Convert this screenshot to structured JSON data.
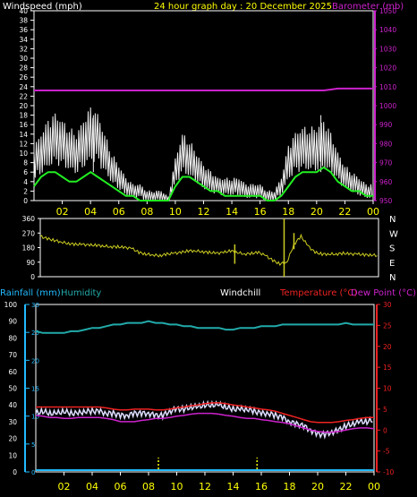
{
  "header": {
    "windspeed_label": "Windspeed (mph)",
    "title": "24 hour graph day : 20 December 2025",
    "barometer_label": "Barometer (mb)"
  },
  "lower_header": {
    "rainfall_label": "Rainfall (mm)",
    "humidity_label": "Humidity",
    "windchill_label": "Windchill",
    "temperature_label": "Temperature (°C)",
    "dewpoint_label": "Dew Point (°C)"
  },
  "colors": {
    "background": "#000000",
    "axis_white": "#ffffff",
    "time_labels": "#ffff00",
    "wind_gust": "#f0f0f0",
    "wind_avg": "#22ee22",
    "barometer": "#cc22cc",
    "direction": "#cccc22",
    "humidity": "#22aaaa",
    "rainfall": "#22bbff",
    "temperature": "#ee2222",
    "dewpoint": "#cc22cc",
    "windchill": "#ddddff"
  },
  "chart_data": [
    {
      "type": "line",
      "name": "wind-barometer",
      "x_ticks": [
        "02",
        "04",
        "06",
        "08",
        "10",
        "12",
        "14",
        "16",
        "18",
        "20",
        "22",
        "00"
      ],
      "y_left": {
        "label": "Windspeed (mph)",
        "ticks": [
          "0",
          "2",
          "4",
          "6",
          "8",
          "10",
          "12",
          "14",
          "16",
          "18",
          "20",
          "22",
          "24",
          "26",
          "28",
          "30",
          "32",
          "34",
          "36",
          "38",
          "40"
        ],
        "range": [
          0,
          40
        ]
      },
      "y_right": {
        "label": "Barometer (mb)",
        "ticks": [
          "950",
          "960",
          "970",
          "980",
          "990",
          "1000",
          "1010",
          "1020",
          "1030",
          "1040",
          "1050"
        ],
        "range": [
          950,
          1050
        ]
      },
      "hours": [
        0,
        0.5,
        1,
        1.5,
        2,
        2.5,
        3,
        3.5,
        4,
        4.5,
        5,
        5.5,
        6,
        6.5,
        7,
        7.5,
        8,
        8.5,
        9,
        9.5,
        10,
        10.5,
        11,
        11.5,
        12,
        12.5,
        13,
        13.5,
        14,
        14.5,
        15,
        15.5,
        16,
        16.5,
        17,
        17.5,
        18,
        18.5,
        19,
        19.5,
        20,
        20.5,
        21,
        21.5,
        22,
        22.5,
        23,
        23.5,
        24
      ],
      "series": [
        {
          "name": "Windspeed gust",
          "values": [
            8,
            10,
            12,
            13,
            12,
            11,
            10,
            12,
            14,
            13,
            10,
            7,
            5,
            3,
            2,
            2,
            1,
            1,
            1,
            0,
            6,
            10,
            9,
            7,
            5,
            4,
            3,
            3,
            3,
            3,
            2,
            2,
            2,
            1,
            1,
            3,
            8,
            10,
            11,
            11,
            11,
            12,
            10,
            7,
            5,
            4,
            3,
            2,
            2
          ]
        },
        {
          "name": "Windspeed average",
          "values": [
            3,
            5,
            6,
            6,
            5,
            4,
            4,
            5,
            6,
            5,
            4,
            3,
            2,
            1,
            1,
            0,
            0,
            0,
            0,
            0,
            3,
            5,
            5,
            4,
            3,
            2,
            2,
            1,
            1,
            1,
            1,
            1,
            1,
            0,
            0,
            1,
            3,
            5,
            6,
            6,
            6,
            7,
            6,
            4,
            3,
            2,
            2,
            1,
            1
          ]
        },
        {
          "name": "Barometer",
          "values": [
            1008,
            1008,
            1008,
            1008,
            1008,
            1008,
            1008,
            1008,
            1008,
            1008,
            1008,
            1008,
            1008,
            1008,
            1008,
            1008,
            1008,
            1008,
            1008,
            1008,
            1008,
            1008,
            1008,
            1008,
            1008,
            1008,
            1008,
            1008,
            1008,
            1008,
            1008,
            1008,
            1008,
            1008,
            1008,
            1008,
            1008,
            1008,
            1008,
            1008,
            1008,
            1008,
            1008.5,
            1009,
            1009,
            1009,
            1009,
            1009,
            1009
          ]
        }
      ],
      "gust_peaks": [
        {
          "hour": 4.2,
          "value": 18
        },
        {
          "hour": 20.3,
          "value": 18
        }
      ]
    },
    {
      "type": "line",
      "name": "wind-direction",
      "y_left_ticks": [
        "360",
        "270",
        "180",
        "90",
        "0"
      ],
      "y_left_range": [
        0,
        360
      ],
      "compass_labels": [
        "N",
        "W",
        "S",
        "E",
        "N"
      ],
      "hours": [
        0,
        0.5,
        1,
        1.5,
        2,
        2.5,
        3,
        3.5,
        4,
        4.5,
        5,
        5.5,
        6,
        6.5,
        7,
        7.5,
        8,
        8.5,
        9,
        9.5,
        10,
        10.5,
        11,
        11.5,
        12,
        12.5,
        13,
        13.5,
        14,
        14.5,
        15,
        15.5,
        16,
        16.5,
        17,
        17.5,
        18,
        18.5,
        19,
        19.5,
        20,
        20.5,
        21,
        21.5,
        22,
        22.5,
        23,
        23.5,
        24
      ],
      "series": [
        {
          "name": "Wind direction",
          "values": [
            250,
            235,
            225,
            215,
            205,
            200,
            200,
            195,
            195,
            190,
            185,
            185,
            180,
            175,
            150,
            140,
            135,
            130,
            140,
            145,
            150,
            160,
            160,
            155,
            150,
            145,
            150,
            160,
            150,
            140,
            145,
            150,
            130,
            100,
            80,
            90,
            200,
            250,
            190,
            150,
            140,
            140,
            140,
            145,
            140,
            140,
            135,
            135,
            130
          ]
        }
      ],
      "spikes": [
        {
          "hour": 13.8,
          "low": 80,
          "high": 200
        },
        {
          "hour": 17.3,
          "low": 0,
          "high": 360
        },
        {
          "hour": 18.0,
          "low": 170,
          "high": 270
        }
      ]
    },
    {
      "type": "line",
      "name": "temperature-humidity",
      "x_ticks": [
        "02",
        "04",
        "06",
        "08",
        "10",
        "12",
        "14",
        "16",
        "18",
        "20",
        "22",
        "00"
      ],
      "humidity_ticks": [
        "0",
        "10",
        "20",
        "30",
        "40",
        "50",
        "60",
        "70",
        "80",
        "90",
        "100"
      ],
      "humidity_range": [
        0,
        100
      ],
      "rain_ticks": [
        "0",
        "5",
        "10",
        "15",
        "20",
        "25",
        "30"
      ],
      "rain_range": [
        0,
        30
      ],
      "temp_ticks": [
        "-10",
        "-5",
        "0",
        "5",
        "10",
        "15",
        "20",
        "25",
        "30"
      ],
      "temp_range": [
        -10,
        30
      ],
      "hours": [
        0,
        0.5,
        1,
        1.5,
        2,
        2.5,
        3,
        3.5,
        4,
        4.5,
        5,
        5.5,
        6,
        6.5,
        7,
        7.5,
        8,
        8.5,
        9,
        9.5,
        10,
        10.5,
        11,
        11.5,
        12,
        12.5,
        13,
        13.5,
        14,
        14.5,
        15,
        15.5,
        16,
        16.5,
        17,
        17.5,
        18,
        18.5,
        19,
        19.5,
        20,
        20.5,
        21,
        21.5,
        22,
        22.5,
        23,
        23.5,
        24
      ],
      "series": [
        {
          "name": "Humidity",
          "values": [
            84,
            83,
            83,
            83,
            83,
            84,
            84,
            85,
            86,
            86,
            87,
            88,
            88,
            89,
            89,
            89,
            90,
            89,
            89,
            88,
            88,
            87,
            87,
            86,
            86,
            86,
            86,
            85,
            85,
            86,
            86,
            86,
            87,
            87,
            87,
            88,
            88,
            88,
            88,
            88,
            88,
            88,
            88,
            88,
            89,
            88,
            88,
            88,
            88
          ]
        },
        {
          "name": "Temperature",
          "values": [
            5.5,
            5.5,
            5.5,
            5.5,
            5.5,
            5.5,
            5.5,
            5.5,
            5.5,
            5.5,
            5.3,
            5.0,
            4.8,
            4.8,
            5.0,
            5.0,
            5.0,
            4.8,
            4.8,
            5.0,
            5.3,
            5.5,
            5.8,
            6.0,
            6.3,
            6.5,
            6.5,
            6.3,
            6.0,
            5.8,
            5.5,
            5.3,
            5.0,
            4.8,
            4.5,
            4.0,
            3.5,
            3.0,
            2.5,
            2.0,
            1.8,
            1.8,
            1.8,
            2.0,
            2.3,
            2.5,
            2.8,
            3.0,
            3.0
          ]
        },
        {
          "name": "Dew Point",
          "values": [
            3.5,
            3.3,
            3.0,
            3.0,
            2.8,
            2.8,
            3.0,
            3.0,
            3.0,
            3.0,
            2.8,
            2.5,
            2.0,
            2.0,
            2.0,
            2.3,
            2.5,
            2.8,
            2.8,
            3.0,
            3.3,
            3.5,
            3.8,
            4.0,
            4.0,
            4.0,
            3.8,
            3.5,
            3.3,
            3.0,
            2.8,
            2.8,
            2.5,
            2.3,
            2.0,
            1.8,
            1.5,
            1.0,
            0.5,
            0.0,
            -0.3,
            -0.5,
            -0.5,
            -0.3,
            0.0,
            0.3,
            0.5,
            0.5,
            0.3
          ]
        },
        {
          "name": "Windchill",
          "values": [
            4,
            4.5,
            4,
            4,
            4.5,
            4,
            4,
            4.5,
            4.5,
            4.5,
            4,
            4,
            3.5,
            3.5,
            4,
            4,
            4,
            3.5,
            3.5,
            4.5,
            5,
            5,
            5.5,
            5.5,
            6,
            6,
            6,
            5.5,
            5,
            5,
            5,
            4.5,
            4,
            4,
            3.5,
            3,
            2,
            1.5,
            1,
            0,
            -1,
            -1,
            -0.5,
            0,
            1,
            1.5,
            2,
            2,
            2.5
          ]
        }
      ],
      "rain_markers": [
        {
          "hour": 8.7
        },
        {
          "hour": 15.7
        }
      ]
    }
  ]
}
